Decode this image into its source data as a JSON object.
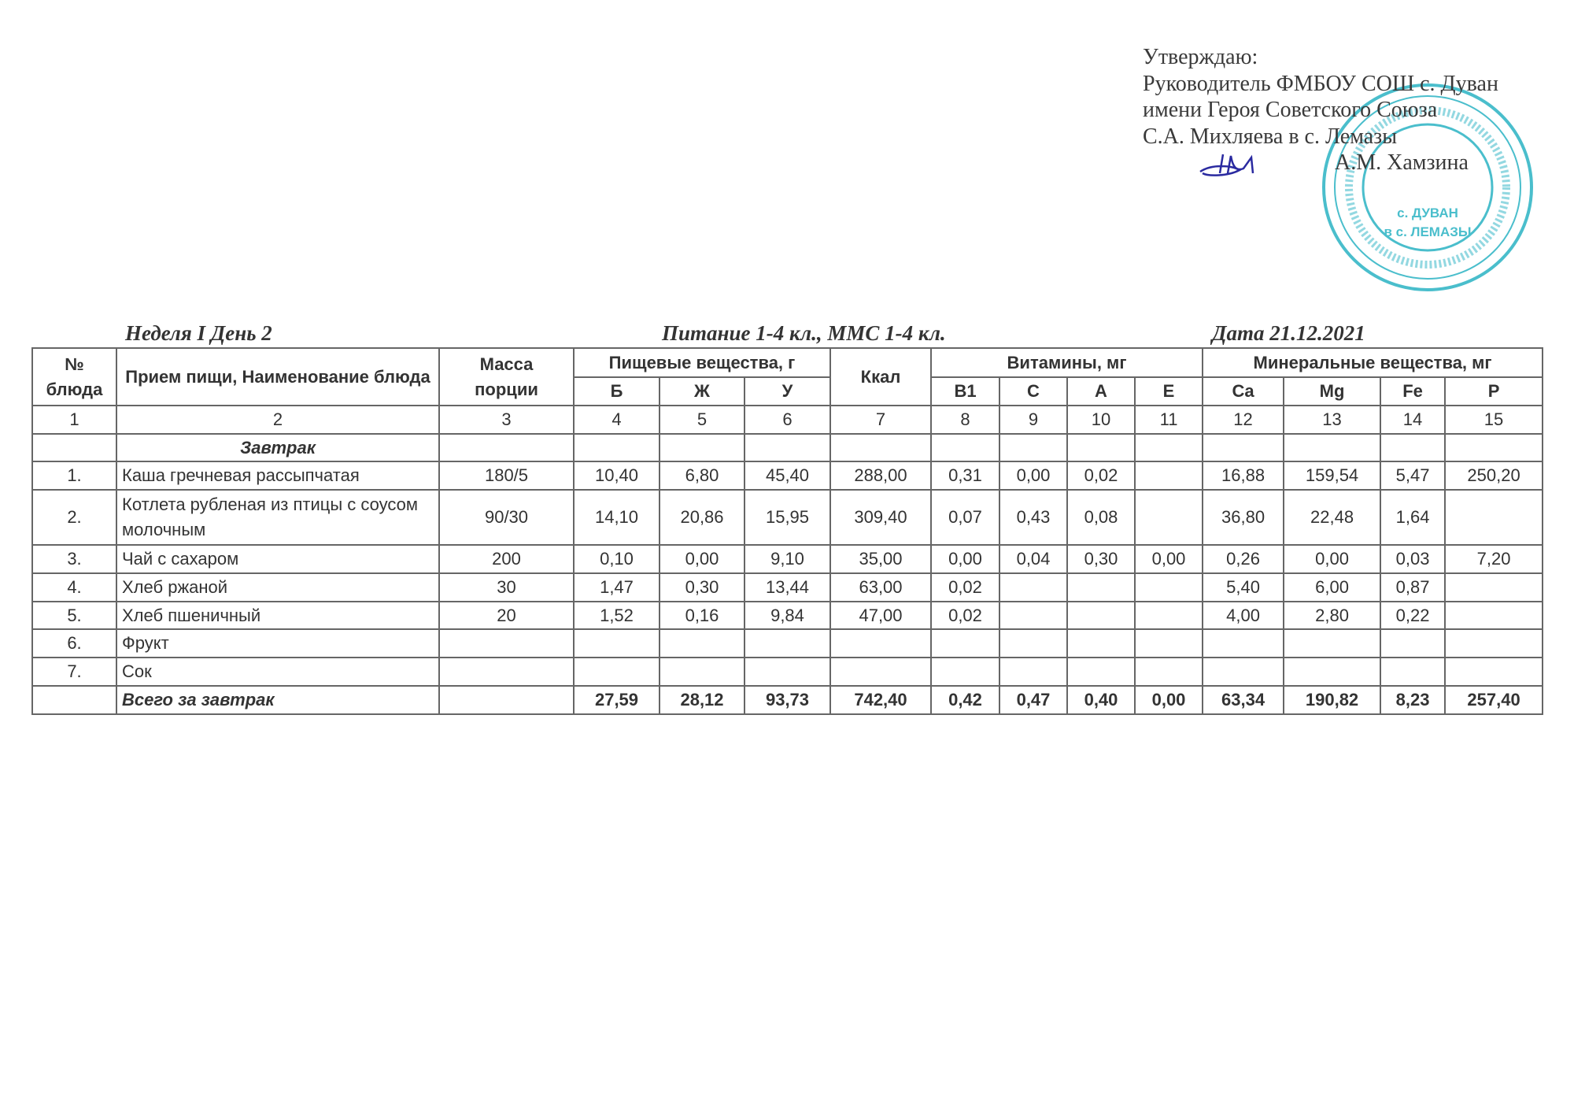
{
  "approval": {
    "lines": [
      "Утверждаю:",
      "Руководитель ФМБОУ СОШ с. Дуван",
      "имени Героя Советского Союза",
      "С.А. Михляева в с. Лемазы"
    ],
    "signer": "А.М. Хамзина",
    "stamp_text": [
      "с. ДУВАН",
      "в с. ЛЕМАЗЫ"
    ],
    "stamp_color": "#2bb3c4",
    "signature_color": "#2a2aa0"
  },
  "caption": {
    "week_day": "Неделя I День 2",
    "group": "Питание  1-4 кл., ММС 1-4 кл.",
    "date": "Дата  21.12.2021"
  },
  "table": {
    "headers": {
      "num": "№ блюда",
      "name": "Прием пищи, Наименование блюда",
      "mass": "Масса порции",
      "nutrients": "Пищевые вещества, г",
      "kcal": "Ккал",
      "vitamins": "Витамины, мг",
      "minerals": "Минеральные вещества, мг",
      "sub": [
        "Б",
        "Ж",
        "У",
        "B1",
        "C",
        "A",
        "E",
        "Ca",
        "Mg",
        "Fe",
        "P"
      ],
      "col_numbers": [
        "1",
        "2",
        "3",
        "4",
        "5",
        "6",
        "7",
        "8",
        "9",
        "10",
        "11",
        "12",
        "13",
        "14",
        "15"
      ]
    },
    "section": "Завтрак",
    "rows": [
      [
        "1.",
        "Каша гречневая рассыпчатая",
        "180/5",
        "10,40",
        "6,80",
        "45,40",
        "288,00",
        "0,31",
        "0,00",
        "0,02",
        "",
        "16,88",
        "159,54",
        "5,47",
        "250,20"
      ],
      [
        "2.",
        "Котлета рубленая из птицы с соусом молочным",
        "90/30",
        "14,10",
        "20,86",
        "15,95",
        "309,40",
        "0,07",
        "0,43",
        "0,08",
        "",
        "36,80",
        "22,48",
        "1,64",
        ""
      ],
      [
        "3.",
        "Чай с сахаром",
        "200",
        "0,10",
        "0,00",
        "9,10",
        "35,00",
        "0,00",
        "0,04",
        "0,30",
        "0,00",
        "0,26",
        "0,00",
        "0,03",
        "7,20"
      ],
      [
        "4.",
        "Хлеб ржаной",
        "30",
        "1,47",
        "0,30",
        "13,44",
        "63,00",
        "0,02",
        "",
        "",
        "",
        "5,40",
        "6,00",
        "0,87",
        ""
      ],
      [
        "5.",
        "Хлеб пшеничный",
        "20",
        "1,52",
        "0,16",
        "9,84",
        "47,00",
        "0,02",
        "",
        "",
        "",
        "4,00",
        "2,80",
        "0,22",
        ""
      ],
      [
        "6.",
        "Фрукт",
        "",
        "",
        "",
        "",
        "",
        "",
        "",
        "",
        "",
        "",
        "",
        "",
        ""
      ],
      [
        "7.",
        "Сок",
        "",
        "",
        "",
        "",
        "",
        "",
        "",
        "",
        "",
        "",
        "",
        "",
        ""
      ]
    ],
    "total": [
      "",
      "Всего за завтрак",
      "",
      "27,59",
      "28,12",
      "93,73",
      "742,40",
      "0,42",
      "0,47",
      "0,40",
      "0,00",
      "63,34",
      "190,82",
      "8,23",
      "257,40"
    ]
  }
}
